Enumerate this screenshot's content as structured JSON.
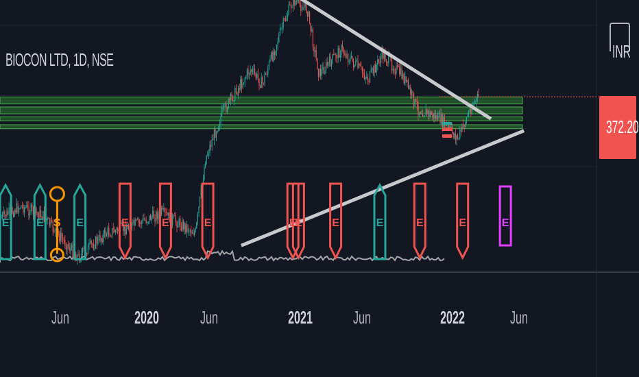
{
  "header": {
    "title": "BIOCON LTD, 1D, NSE"
  },
  "currency": "INR",
  "last_price": "372.20",
  "colors": {
    "background": "#131722",
    "up": "#26a69a",
    "down": "#ef5350",
    "zone": "#2e7d32",
    "trendline": "#c8c9cc",
    "future": "#e040fb",
    "split": "#ff9800"
  },
  "x_axis_labels": [
    {
      "text": "Jun",
      "strong": false
    },
    {
      "text": "2020",
      "strong": true
    },
    {
      "text": "Jun",
      "strong": false
    },
    {
      "text": "2021",
      "strong": true
    },
    {
      "text": "Jun",
      "strong": false
    },
    {
      "text": "2022",
      "strong": true
    },
    {
      "text": "Jun",
      "strong": false
    }
  ],
  "chart_data": {
    "type": "candlestick",
    "symbol": "BIOCON LTD",
    "interval": "1D",
    "exchange": "NSE",
    "x_range": [
      "2019-02",
      "2022-08"
    ],
    "y_range": [
      200,
      420
    ],
    "last_price": 372.2,
    "price_path": [
      {
        "date": "2019-02-01",
        "price": 250
      },
      {
        "date": "2019-03-15",
        "price": 262
      },
      {
        "date": "2019-05-01",
        "price": 252
      },
      {
        "date": "2019-07-15",
        "price": 210
      },
      {
        "date": "2019-09-15",
        "price": 235
      },
      {
        "date": "2019-11-01",
        "price": 240
      },
      {
        "date": "2020-01-10",
        "price": 255
      },
      {
        "date": "2020-03-25",
        "price": 235
      },
      {
        "date": "2020-04-15",
        "price": 310
      },
      {
        "date": "2020-05-20",
        "price": 355
      },
      {
        "date": "2020-07-20",
        "price": 400
      },
      {
        "date": "2020-08-15",
        "price": 385
      },
      {
        "date": "2020-09-25",
        "price": 440
      },
      {
        "date": "2020-10-20",
        "price": 470
      },
      {
        "date": "2020-11-20",
        "price": 460
      },
      {
        "date": "2020-12-15",
        "price": 395
      },
      {
        "date": "2021-02-01",
        "price": 420
      },
      {
        "date": "2021-04-01",
        "price": 390
      },
      {
        "date": "2021-05-01",
        "price": 415
      },
      {
        "date": "2021-06-15",
        "price": 392
      },
      {
        "date": "2021-07-15",
        "price": 360
      },
      {
        "date": "2021-09-01",
        "price": 350
      },
      {
        "date": "2021-10-10",
        "price": 330
      },
      {
        "date": "2021-11-10",
        "price": 365
      },
      {
        "date": "2021-11-25",
        "price": 372.2
      }
    ],
    "support_resistance_zones": [
      {
        "from": 365,
        "to": 372
      },
      {
        "from": 355,
        "to": 362
      },
      {
        "from": 348,
        "to": 352
      },
      {
        "from": 340,
        "to": 344
      }
    ],
    "trendlines": [
      {
        "from": {
          "date": "2020-10-25",
          "price": 475
        },
        "to": {
          "date": "2021-12-20",
          "price": 350
        }
      },
      {
        "from": {
          "date": "2020-07-01",
          "price": 222
        },
        "to": {
          "date": "2022-03-01",
          "price": 338
        }
      }
    ],
    "events": [
      {
        "type": "E",
        "style": "earnings-beat",
        "date": "2019-02-10"
      },
      {
        "type": "E",
        "style": "earnings-beat",
        "date": "2019-04-25"
      },
      {
        "type": "S",
        "style": "split",
        "date": "2019-06-01"
      },
      {
        "type": "E",
        "style": "earnings-beat",
        "date": "2019-07-20"
      },
      {
        "type": "E",
        "style": "earnings-miss",
        "date": "2019-10-25"
      },
      {
        "type": "E",
        "style": "earnings-miss",
        "date": "2020-01-20"
      },
      {
        "type": "E",
        "style": "earnings-miss",
        "date": "2020-04-20"
      },
      {
        "type": "E",
        "style": "earnings-miss",
        "date": "2020-10-20"
      },
      {
        "type": "E",
        "style": "earnings-miss",
        "date": "2020-11-01"
      },
      {
        "type": "E",
        "style": "earnings-miss",
        "date": "2021-01-20"
      },
      {
        "type": "E",
        "style": "earnings-beat",
        "date": "2021-04-25"
      },
      {
        "type": "E",
        "style": "earnings-miss",
        "date": "2021-07-20"
      },
      {
        "type": "E",
        "style": "earnings-miss",
        "date": "2021-10-20"
      },
      {
        "type": "E",
        "style": "future",
        "date": "2022-01-20"
      }
    ]
  }
}
